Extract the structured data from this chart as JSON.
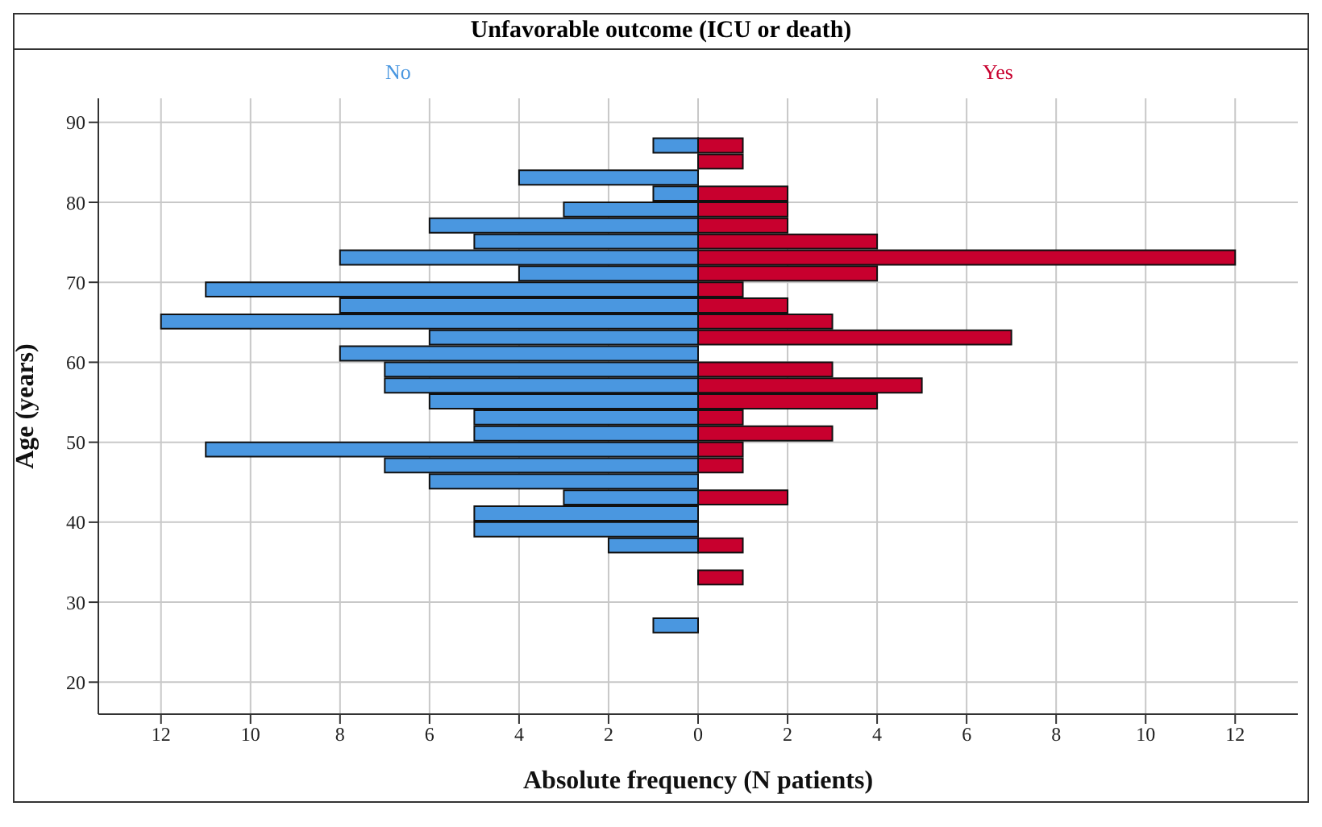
{
  "chart_data": {
    "type": "bar",
    "orientation": "horizontal",
    "stacked": true,
    "legend_title": "Unfavorable outcome (ICU or death)",
    "legend": "top",
    "xlabel": "Absolute frequency (N patients)",
    "ylabel": "Age (years)",
    "x": [
      27,
      29,
      31,
      33,
      35,
      37,
      39,
      41,
      43,
      45,
      47,
      49,
      51,
      53,
      55,
      57,
      59,
      61,
      63,
      65,
      67,
      69,
      71,
      73,
      75,
      77,
      79,
      81,
      83,
      85,
      87
    ],
    "series": [
      {
        "name": "No",
        "color": "#4a97e0",
        "values": [
          -1,
          0,
          0,
          0,
          0,
          -2,
          -5,
          -5,
          -3,
          -6,
          -7,
          -11,
          -5,
          -5,
          -6,
          -7,
          -7,
          -8,
          -6,
          -12,
          -8,
          -11,
          -4,
          -8,
          -5,
          -6,
          -3,
          -1,
          -4,
          0,
          -1
        ]
      },
      {
        "name": "Yes",
        "color": "#c8002e",
        "values": [
          0,
          0,
          0,
          1,
          0,
          1,
          0,
          0,
          2,
          0,
          1,
          1,
          3,
          1,
          4,
          5,
          3,
          0,
          7,
          3,
          2,
          1,
          4,
          12,
          4,
          2,
          2,
          2,
          0,
          1,
          1
        ]
      }
    ],
    "xlim": [
      -13.4,
      13.4
    ],
    "xticks": [
      {
        "value": -12,
        "label": "12"
      },
      {
        "value": -10,
        "label": "10"
      },
      {
        "value": -8,
        "label": "8"
      },
      {
        "value": -6,
        "label": "6"
      },
      {
        "value": -4,
        "label": "4"
      },
      {
        "value": -2,
        "label": "2"
      },
      0,
      2,
      4,
      6,
      8,
      10,
      12
    ],
    "ylim": [
      16,
      93
    ],
    "yticks": [
      20,
      30,
      40,
      50,
      60,
      70,
      80,
      90
    ],
    "grid": true
  }
}
